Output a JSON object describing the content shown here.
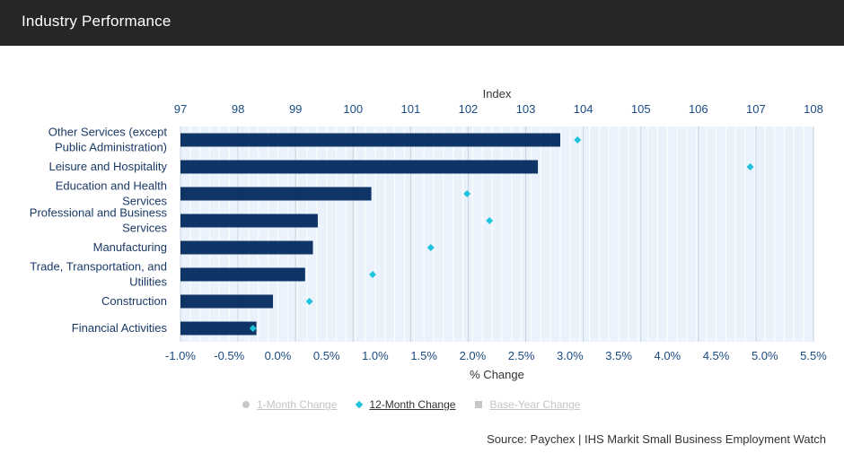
{
  "header": {
    "title": "Industry Performance"
  },
  "chart_data": {
    "type": "bar",
    "orientation": "horizontal",
    "title": "",
    "categories": [
      "Other Services (except Public Administration)",
      "Leisure and Hospitality",
      "Education and Health Services",
      "Professional and Business Services",
      "Manufacturing",
      "Trade, Transportation, and Utilities",
      "Construction",
      "Financial Activities"
    ],
    "category_label_lines": [
      [
        "Other Services (except",
        "Public Administration)"
      ],
      [
        "Leisure and Hospitality"
      ],
      [
        "Education and Health",
        "Services"
      ],
      [
        "Professional and Business",
        "Services"
      ],
      [
        "Manufacturing"
      ],
      [
        "Trade, Transportation, and",
        "Utilities"
      ],
      [
        "Construction"
      ],
      [
        "Financial Activities"
      ]
    ],
    "series": [
      {
        "name": "1-Month Change",
        "axis": "x-bottom",
        "values": [
          2.9,
          2.67,
          0.96,
          0.41,
          0.36,
          0.28,
          -0.05,
          -0.22
        ]
      },
      {
        "name": "12-Month Change",
        "axis": "x-top",
        "values": [
          103.9,
          106.9,
          101.98,
          102.37,
          101.35,
          100.34,
          99.24,
          98.26
        ]
      }
    ],
    "xlabel_bottom": "% Change",
    "xlim_bottom": [
      -1.0,
      5.5
    ],
    "xticks_bottom": [
      "-1.0%",
      "-0.5%",
      "0.0%",
      "0.5%",
      "1.0%",
      "1.5%",
      "2.0%",
      "2.5%",
      "3.0%",
      "3.5%",
      "4.0%",
      "4.5%",
      "5.0%",
      "5.5%"
    ],
    "xlabel_top": "Index",
    "xlim_top": [
      97,
      108
    ],
    "xticks_top": [
      "97",
      "98",
      "99",
      "100",
      "101",
      "102",
      "103",
      "104",
      "105",
      "106",
      "107",
      "108"
    ],
    "grid": true,
    "colors": {
      "bar": "#0f3466",
      "marker": "#1fc3dc",
      "plot_bg": "#eaf3fb",
      "grid_major": "#c9d3dd",
      "grid_minor": "#ffffff"
    }
  },
  "legend": {
    "items": [
      {
        "label": "1-Month Change",
        "icon": "circle-icon",
        "state": "inactive"
      },
      {
        "label": "12-Month Change",
        "icon": "diamond-icon",
        "state": "active"
      },
      {
        "label": "Base-Year Change",
        "icon": "square-icon",
        "state": "inactive"
      }
    ]
  },
  "footer": {
    "source": "Source: Paychex | IHS Markit Small Business Employment Watch"
  }
}
